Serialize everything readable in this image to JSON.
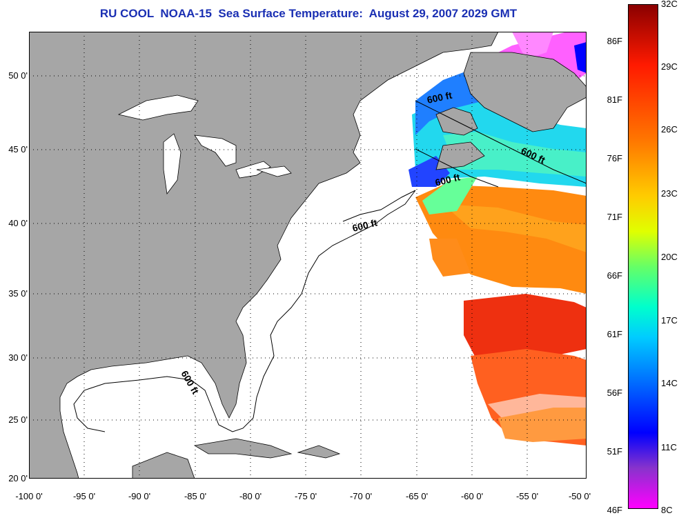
{
  "title": "RU COOL  NOAA-15  Sea Surface Temperature:  August 29, 2007 2029 GMT",
  "x_ticks": [
    "-100 0'",
    "-95 0'",
    "-90 0'",
    "-85 0'",
    "-80 0'",
    "-75 0'",
    "-70 0'",
    "-65 0'",
    "-60 0'",
    "-55 0'",
    "-50 0'"
  ],
  "y_ticks": [
    "50 0'",
    "45 0'",
    "40 0'",
    "35 0'",
    "30 0'",
    "25 0'",
    "20 0'"
  ],
  "colorbar": {
    "celsius": [
      "32C",
      "29C",
      "26C",
      "23C",
      "20C",
      "17C",
      "14C",
      "11C",
      "8C"
    ],
    "fahrenheit": [
      "86F",
      "81F",
      "76F",
      "71F",
      "66F",
      "61F",
      "56F",
      "51F",
      "46F"
    ]
  },
  "contour_labels": [
    "600 ft",
    "600 ft",
    "600 ft",
    "600 ft",
    "600 ft"
  ],
  "colors": {
    "land": "#a6a6a6",
    "ocean_nodata": "#ffffff",
    "title": "#1a2fb3"
  }
}
